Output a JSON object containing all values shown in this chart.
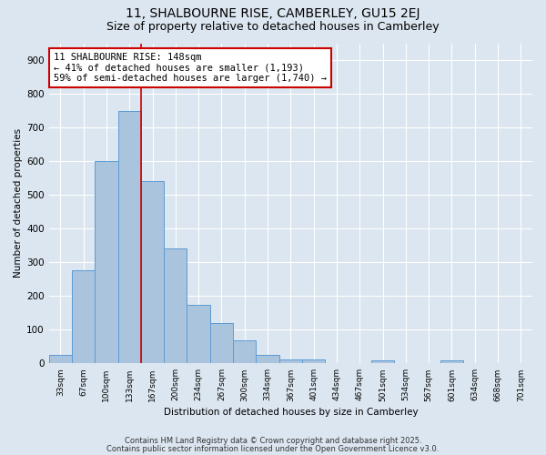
{
  "title": "11, SHALBOURNE RISE, CAMBERLEY, GU15 2EJ",
  "subtitle": "Size of property relative to detached houses in Camberley",
  "xlabel": "Distribution of detached houses by size in Camberley",
  "ylabel": "Number of detached properties",
  "bar_labels": [
    "33sqm",
    "67sqm",
    "100sqm",
    "133sqm",
    "167sqm",
    "200sqm",
    "234sqm",
    "267sqm",
    "300sqm",
    "334sqm",
    "367sqm",
    "401sqm",
    "434sqm",
    "467sqm",
    "501sqm",
    "534sqm",
    "567sqm",
    "601sqm",
    "634sqm",
    "668sqm",
    "701sqm"
  ],
  "bar_values": [
    25,
    275,
    600,
    750,
    540,
    340,
    175,
    120,
    68,
    25,
    13,
    12,
    0,
    0,
    9,
    0,
    0,
    8,
    0,
    0,
    0
  ],
  "bar_color": "#aac4de",
  "bar_edge_color": "#5b9bd5",
  "vline_x_index": 3.5,
  "vline_color": "#cc0000",
  "annotation_text": "11 SHALBOURNE RISE: 148sqm\n← 41% of detached houses are smaller (1,193)\n59% of semi-detached houses are larger (1,740) →",
  "annotation_box_color": "#ffffff",
  "annotation_box_edge": "#cc0000",
  "ylim": [
    0,
    950
  ],
  "yticks": [
    0,
    100,
    200,
    300,
    400,
    500,
    600,
    700,
    800,
    900
  ],
  "fig_bg_color": "#dce6f0",
  "plot_bg_color": "#dce6f0",
  "footer_line1": "Contains HM Land Registry data © Crown copyright and database right 2025.",
  "footer_line2": "Contains public sector information licensed under the Open Government Licence v3.0.",
  "title_fontsize": 10,
  "subtitle_fontsize": 9
}
